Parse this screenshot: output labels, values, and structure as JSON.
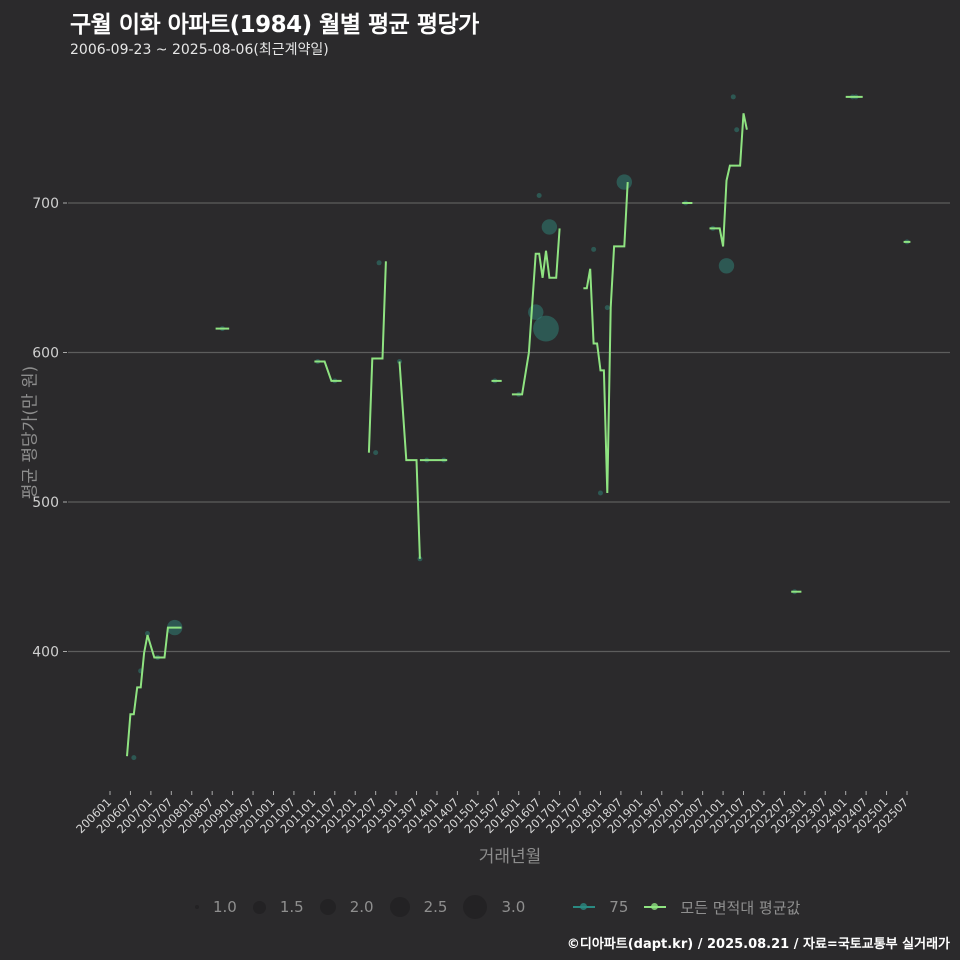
{
  "header": {
    "title": "구월 이화 아파트(1984) 월별 평균 평당가",
    "subtitle": "2006-09-23 ~ 2025-08-06(최근계약일)"
  },
  "axes": {
    "xlabel": "거래년월",
    "ylabel": "평균 평당가(만 원)"
  },
  "legend": {
    "size_items": [
      {
        "label": "1.0",
        "size": 4
      },
      {
        "label": "1.5",
        "size": 12
      },
      {
        "label": "2.0",
        "size": 16
      },
      {
        "label": "2.5",
        "size": 20
      },
      {
        "label": "3.0",
        "size": 24
      }
    ],
    "series_items": [
      {
        "label": "75",
        "color": "#2a8a82"
      },
      {
        "label": "모든 면적대 평균값",
        "color": "#8fe381"
      }
    ]
  },
  "footer": {
    "credit": "©디아파트(dapt.kr) / 2025.08.21 / 자료=국토교통부 실거래가"
  },
  "colors": {
    "background": "#2b2a2c",
    "gridline": "#5d5d5d",
    "avg_line": "#8fe381",
    "points": "#2e6e68"
  },
  "chart_data": {
    "type": "line",
    "title": "구월 이화 아파트(1984) 월별 평균 평당가",
    "subtitle": "2006-09-23 ~ 2025-08-06(최근계약일)",
    "xlabel": "거래년월",
    "ylabel": "평균 평당가(만 원)",
    "ylim": [
      310,
      790
    ],
    "yticks": [
      400,
      500,
      600,
      700
    ],
    "xticks": [
      "200601",
      "200607",
      "200701",
      "200707",
      "200801",
      "200807",
      "200901",
      "200907",
      "201001",
      "201007",
      "201101",
      "201107",
      "201201",
      "201207",
      "201301",
      "201307",
      "201401",
      "201407",
      "201501",
      "201507",
      "201601",
      "201607",
      "201701",
      "201707",
      "201801",
      "201807",
      "201901",
      "201907",
      "202001",
      "202007",
      "202101",
      "202107",
      "202201",
      "202207",
      "202301",
      "202307",
      "202401",
      "202407",
      "202501",
      "202507"
    ],
    "grid": true,
    "legend_position": "bottom",
    "series": [
      {
        "name": "모든 면적대 평균값",
        "kind": "line",
        "segments": [
          [
            [
              "200606",
              330
            ],
            [
              "200607",
              358
            ],
            [
              "200608",
              358
            ],
            [
              "200609",
              376
            ],
            [
              "200610",
              376
            ],
            [
              "200611",
              399
            ],
            [
              "200612",
              411
            ],
            [
              "200702",
              396
            ],
            [
              "200705",
              396
            ],
            [
              "200706",
              416
            ],
            [
              "200710",
              416
            ]
          ],
          [
            [
              "200808",
              616
            ],
            [
              "200812",
              616
            ]
          ],
          [
            [
              "201101",
              594
            ],
            [
              "201104",
              594
            ],
            [
              "201106",
              581
            ],
            [
              "201109",
              581
            ]
          ],
          [
            [
              "201205",
              533
            ],
            [
              "201206",
              596
            ],
            [
              "201209",
              596
            ],
            [
              "201210",
              661
            ]
          ],
          [
            [
              "201302",
              594
            ],
            [
              "201304",
              528
            ],
            [
              "201307",
              528
            ],
            [
              "201308",
              462
            ]
          ],
          [
            [
              "201308",
              528
            ],
            [
              "201404",
              528
            ]
          ],
          [
            [
              "201505",
              581
            ],
            [
              "201508",
              581
            ]
          ],
          [
            [
              "201511",
              572
            ],
            [
              "201602",
              572
            ],
            [
              "201604",
              600
            ],
            [
              "201606",
              666
            ],
            [
              "201607",
              666
            ],
            [
              "201608",
              650
            ],
            [
              "201609",
              668
            ],
            [
              "201610",
              650
            ],
            [
              "201612",
              650
            ],
            [
              "201701",
              683
            ]
          ],
          [
            [
              "201708",
              643
            ],
            [
              "201709",
              643
            ],
            [
              "201710",
              656
            ],
            [
              "201711",
              606
            ],
            [
              "201712",
              606
            ],
            [
              "201801",
              588
            ],
            [
              "201802",
              588
            ],
            [
              "201803",
              506
            ],
            [
              "201804",
              630
            ],
            [
              "201805",
              671
            ],
            [
              "201808",
              671
            ],
            [
              "201809",
              714
            ]
          ],
          [
            [
              "202001",
              700
            ],
            [
              "202004",
              700
            ]
          ],
          [
            [
              "202009",
              683
            ],
            [
              "202012",
              683
            ],
            [
              "202101",
              671
            ],
            [
              "202102",
              715
            ],
            [
              "202103",
              725
            ],
            [
              "202106",
              725
            ],
            [
              "202107",
              760
            ],
            [
              "202108",
              749
            ]
          ],
          [
            [
              "202209",
              440
            ],
            [
              "202212",
              440
            ]
          ],
          [
            [
              "202401",
              771
            ],
            [
              "202406",
              771
            ]
          ],
          [
            [
              "202506",
              674
            ],
            [
              "202508",
              674
            ]
          ]
        ]
      },
      {
        "name": "75",
        "kind": "points",
        "points": [
          {
            "x": "200608",
            "y": 329,
            "n": 1.0
          },
          {
            "x": "200610",
            "y": 387,
            "n": 1.0
          },
          {
            "x": "200612",
            "y": 412,
            "n": 1.0
          },
          {
            "x": "200703",
            "y": 396,
            "n": 1.0
          },
          {
            "x": "200708",
            "y": 416,
            "n": 2.0
          },
          {
            "x": "200810",
            "y": 616,
            "n": 1.0
          },
          {
            "x": "201102",
            "y": 594,
            "n": 1.0
          },
          {
            "x": "201107",
            "y": 581,
            "n": 1.0
          },
          {
            "x": "201207",
            "y": 533,
            "n": 1.0
          },
          {
            "x": "201208",
            "y": 660,
            "n": 1.0
          },
          {
            "x": "201302",
            "y": 594,
            "n": 1.0
          },
          {
            "x": "201308",
            "y": 462,
            "n": 1.0
          },
          {
            "x": "201310",
            "y": 528,
            "n": 1.0
          },
          {
            "x": "201403",
            "y": 528,
            "n": 1.0
          },
          {
            "x": "201506",
            "y": 581,
            "n": 1.0
          },
          {
            "x": "201601",
            "y": 572,
            "n": 1.0
          },
          {
            "x": "201606",
            "y": 627,
            "n": 2.0
          },
          {
            "x": "201607",
            "y": 705,
            "n": 1.0
          },
          {
            "x": "201609",
            "y": 616,
            "n": 3.0
          },
          {
            "x": "201610",
            "y": 684,
            "n": 2.0
          },
          {
            "x": "201711",
            "y": 669,
            "n": 1.0
          },
          {
            "x": "201801",
            "y": 506,
            "n": 1.0
          },
          {
            "x": "201803",
            "y": 630,
            "n": 1.0
          },
          {
            "x": "201808",
            "y": 714,
            "n": 2.0
          },
          {
            "x": "202002",
            "y": 700,
            "n": 1.0
          },
          {
            "x": "202010",
            "y": 683,
            "n": 1.0
          },
          {
            "x": "202102",
            "y": 658,
            "n": 2.0
          },
          {
            "x": "202104",
            "y": 771,
            "n": 1.0
          },
          {
            "x": "202105",
            "y": 749,
            "n": 1.0
          },
          {
            "x": "202210",
            "y": 440,
            "n": 1.0
          },
          {
            "x": "202403",
            "y": 771,
            "n": 1.0
          },
          {
            "x": "202404",
            "y": 771,
            "n": 1.0
          },
          {
            "x": "202507",
            "y": 674,
            "n": 1.0
          }
        ]
      }
    ]
  }
}
